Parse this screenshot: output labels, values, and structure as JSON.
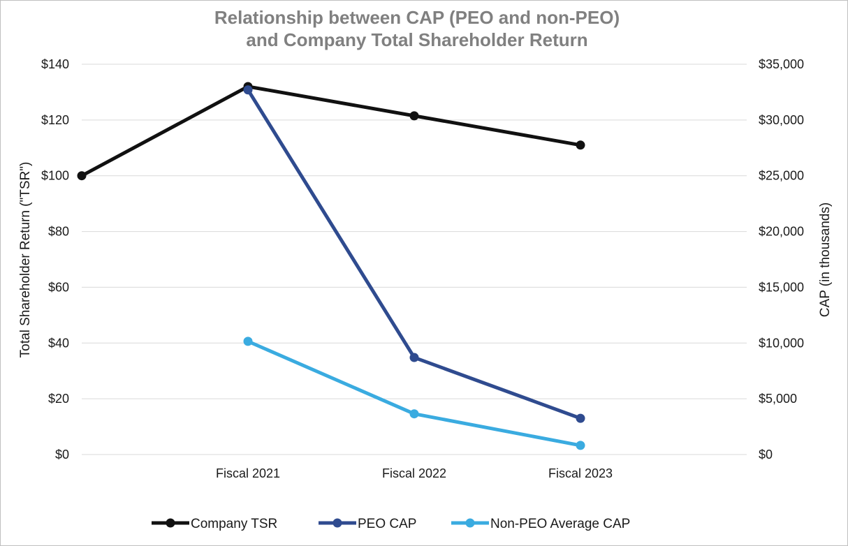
{
  "chart_data": {
    "type": "line",
    "title": [
      "Relationship between CAP (PEO and non-PEO)",
      "and Company Total Shareholder Return"
    ],
    "categories": [
      "",
      "Fiscal 2021",
      "Fiscal 2022",
      "Fiscal 2023"
    ],
    "y_left": {
      "label": "Total Shareholder Return (\"TSR\")",
      "min": 0,
      "max": 140,
      "step": 20,
      "tick_labels": [
        "$0",
        "$20",
        "$40",
        "$60",
        "$80",
        "$100",
        "$120",
        "$140"
      ]
    },
    "y_right": {
      "label": "CAP (in thousands)",
      "min": 0,
      "max": 35000,
      "step": 5000,
      "tick_labels": [
        "$0",
        "$5,000",
        "$10,000",
        "$15,000",
        "$20,000",
        "$25,000",
        "$30,000",
        "$35,000"
      ]
    },
    "grid": true,
    "legend_position": "bottom",
    "series": [
      {
        "name": "Company TSR",
        "axis": "left",
        "color": "#111111",
        "values": [
          100,
          132,
          121.5,
          111
        ]
      },
      {
        "name": "PEO CAP",
        "axis": "right",
        "color": "#2f4b8f",
        "values": [
          null,
          32700,
          8700,
          3250
        ]
      },
      {
        "name": "Non-PEO Average CAP",
        "axis": "right",
        "color": "#3aabe0",
        "values": [
          null,
          10150,
          3650,
          820
        ]
      }
    ]
  }
}
